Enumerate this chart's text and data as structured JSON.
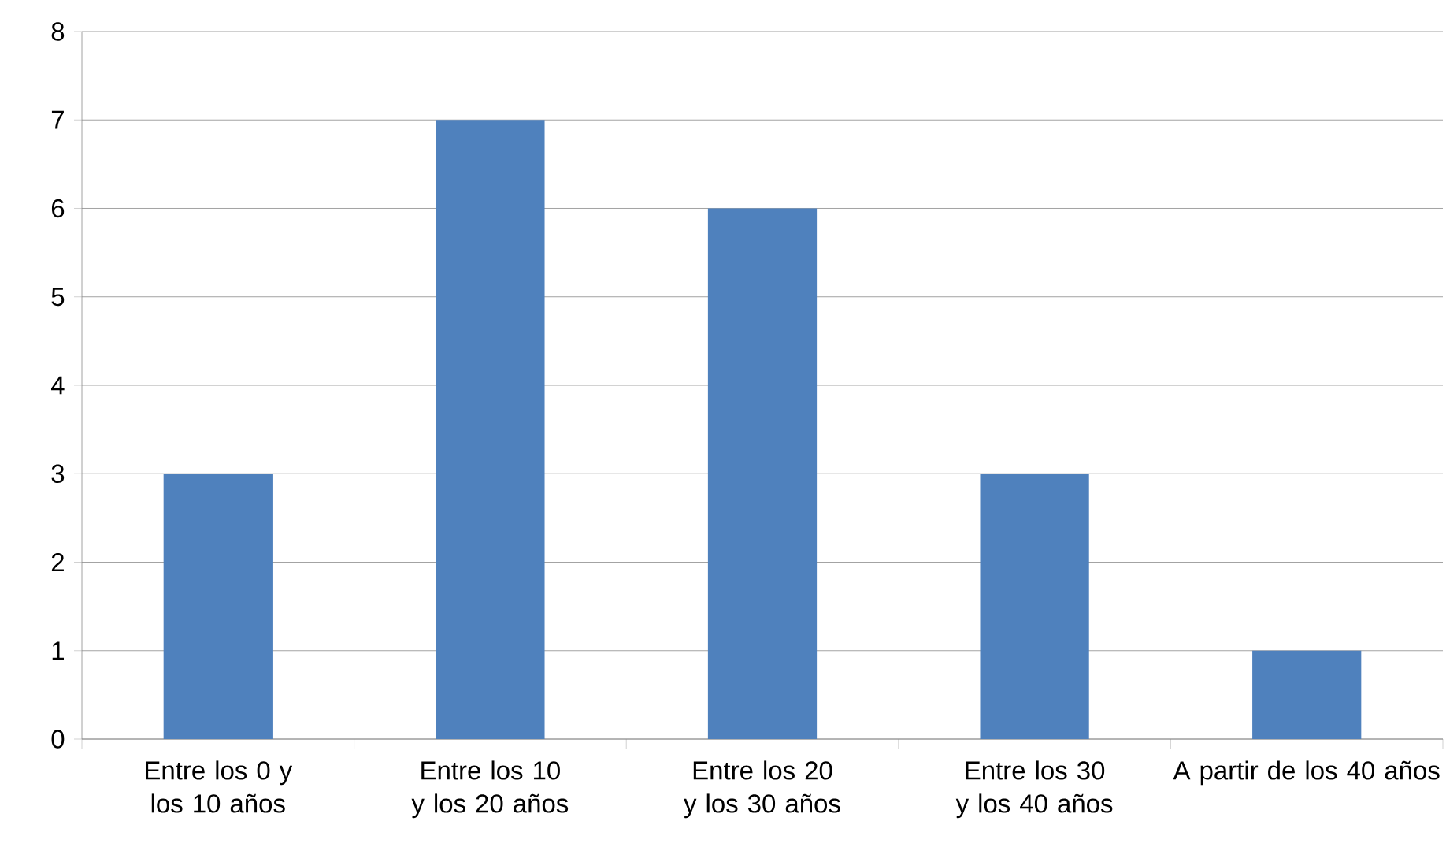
{
  "chart_data": {
    "type": "bar",
    "categories": [
      "Entre los 0 y los 10 años",
      "Entre los 10 y los 20 años",
      "Entre los 20 y los 30 años",
      "Entre los 30 y los 40 años",
      "A partir de los 40 años"
    ],
    "values": [
      3,
      7,
      6,
      3,
      1
    ],
    "color": "#4f81bd",
    "ylim": [
      0,
      8
    ],
    "yticks": [
      0,
      1,
      2,
      3,
      4,
      5,
      6,
      7,
      8
    ],
    "grid": "y"
  }
}
